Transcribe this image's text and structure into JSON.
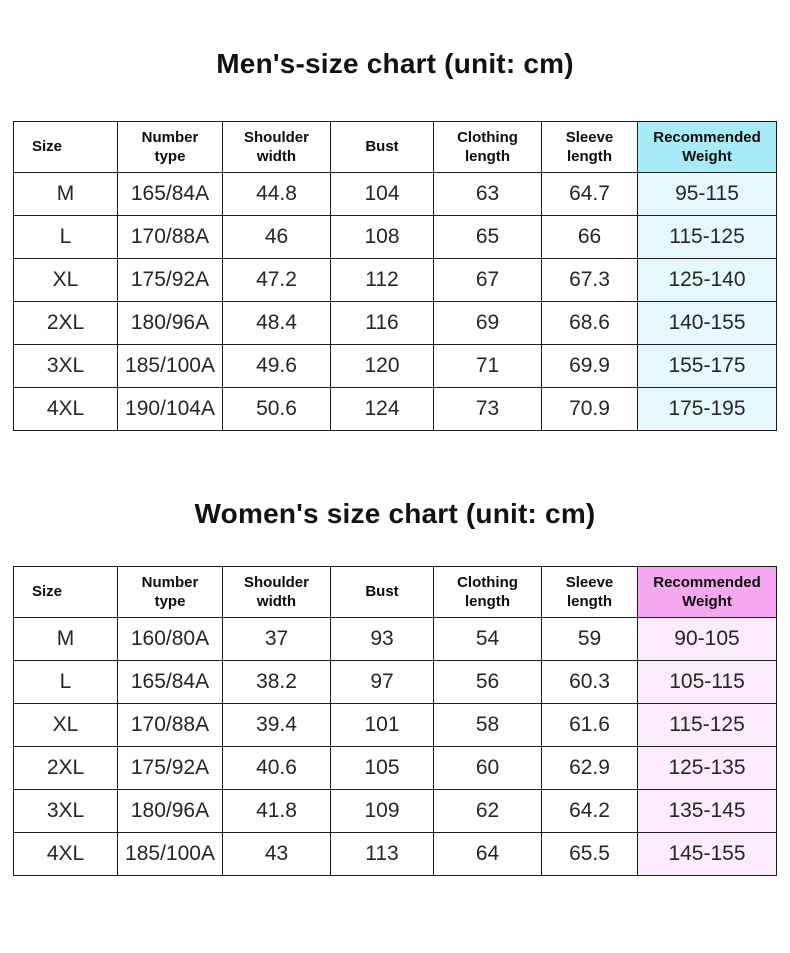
{
  "chart_data": [
    {
      "type": "table",
      "title": "Men's-size chart (unit: cm)",
      "columns": [
        "Size",
        "Number type",
        "Shoulder width",
        "Bust",
        "Clothing length",
        "Sleeve length",
        "Recommended Weight"
      ],
      "rows": [
        [
          "M",
          "165/84A",
          "44.8",
          "104",
          "63",
          "64.7",
          "95-115"
        ],
        [
          "L",
          "170/88A",
          "46",
          "108",
          "65",
          "66",
          "115-125"
        ],
        [
          "XL",
          "175/92A",
          "47.2",
          "112",
          "67",
          "67.3",
          "125-140"
        ],
        [
          "2XL",
          "180/96A",
          "48.4",
          "116",
          "69",
          "68.6",
          "140-155"
        ],
        [
          "3XL",
          "185/100A",
          "49.6",
          "120",
          "71",
          "69.9",
          "155-175"
        ],
        [
          "4XL",
          "190/104A",
          "50.6",
          "124",
          "73",
          "70.9",
          "175-195"
        ]
      ],
      "accent": {
        "header": "#a8eaf6",
        "cells": "#e6f8fc"
      }
    },
    {
      "type": "table",
      "title": "Women's size chart (unit: cm)",
      "columns": [
        "Size",
        "Number type",
        "Shoulder width",
        "Bust",
        "Clothing length",
        "Sleeve length",
        "Recommended Weight"
      ],
      "rows": [
        [
          "M",
          "160/80A",
          "37",
          "93",
          "54",
          "59",
          "90-105"
        ],
        [
          "L",
          "165/84A",
          "38.2",
          "97",
          "56",
          "60.3",
          "105-115"
        ],
        [
          "XL",
          "170/88A",
          "39.4",
          "101",
          "58",
          "61.6",
          "115-125"
        ],
        [
          "2XL",
          "175/92A",
          "40.6",
          "105",
          "60",
          "62.9",
          "125-135"
        ],
        [
          "3XL",
          "180/96A",
          "41.8",
          "109",
          "62",
          "64.2",
          "135-145"
        ],
        [
          "4XL",
          "185/100A",
          "43",
          "113",
          "64",
          "65.5",
          "145-155"
        ]
      ],
      "accent": {
        "header": "#f5a7ef",
        "cells": "#fcebfa"
      }
    }
  ]
}
